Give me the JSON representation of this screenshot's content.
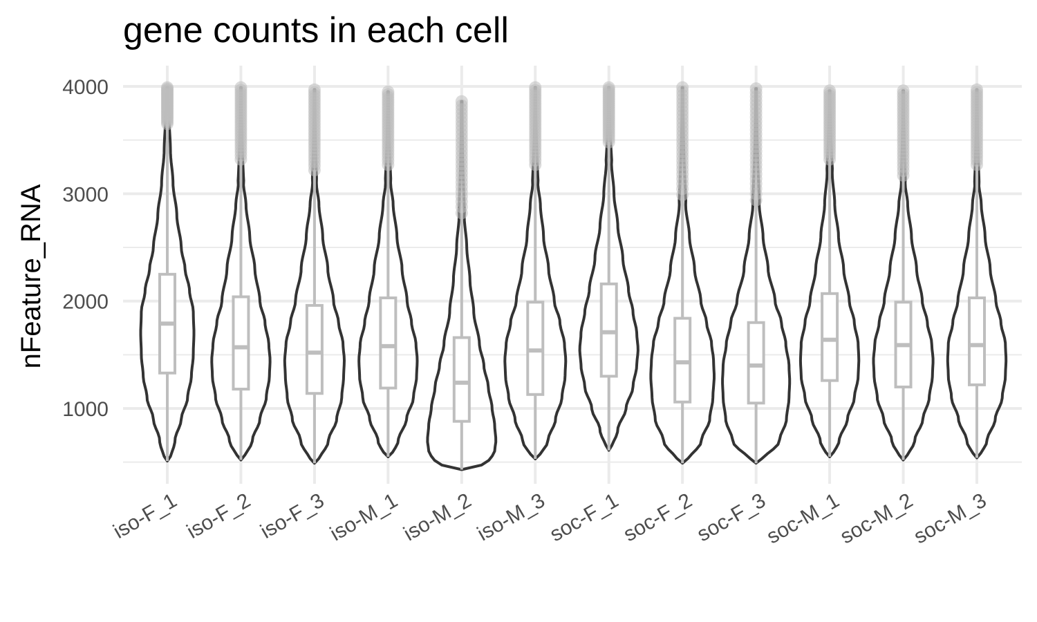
{
  "chart_data": {
    "type": "violin",
    "title": "gene counts in each cell",
    "xlabel": "",
    "ylabel": "nFeature_RNA",
    "ylim": [
      450,
      4000
    ],
    "yticks": [
      1000,
      2000,
      3000,
      4000
    ],
    "ytick_labels": [
      "1000",
      "2000",
      "3000",
      "4000"
    ],
    "grid": true,
    "legend": "none",
    "colors": {
      "violin_outline": "#333333",
      "box": "#bebebe",
      "outlier": "#bebebe",
      "grid": "#ebebeb"
    },
    "categories": [
      "iso-F_1",
      "iso-F_2",
      "iso-F_3",
      "iso-M_1",
      "iso-M_2",
      "iso-M_3",
      "soc-F_1",
      "soc-F_2",
      "soc-F_3",
      "soc-M_1",
      "soc-M_2",
      "soc-M_3"
    ],
    "groups": [
      {
        "name": "iso-F_1",
        "min": 510,
        "q1": 1330,
        "median": 1790,
        "q3": 2250,
        "whisker_high": 3650,
        "outlier_from": 3650,
        "max": 3990,
        "density": [
          [
            510,
            4
          ],
          [
            700,
            12
          ],
          [
            900,
            22
          ],
          [
            1100,
            32
          ],
          [
            1300,
            38
          ],
          [
            1500,
            41
          ],
          [
            1700,
            42
          ],
          [
            1900,
            41
          ],
          [
            2100,
            35
          ],
          [
            2300,
            28
          ],
          [
            2500,
            22
          ],
          [
            2800,
            15
          ],
          [
            3100,
            9
          ],
          [
            3400,
            5
          ],
          [
            3700,
            3
          ]
        ]
      },
      {
        "name": "iso-F_2",
        "min": 520,
        "q1": 1180,
        "median": 1570,
        "q3": 2040,
        "whisker_high": 3320,
        "outlier_from": 3320,
        "max": 3990,
        "density": [
          [
            520,
            4
          ],
          [
            700,
            18
          ],
          [
            900,
            30
          ],
          [
            1100,
            40
          ],
          [
            1300,
            45
          ],
          [
            1450,
            46
          ],
          [
            1600,
            44
          ],
          [
            1800,
            38
          ],
          [
            2000,
            30
          ],
          [
            2300,
            22
          ],
          [
            2600,
            14
          ],
          [
            2900,
            8
          ],
          [
            3100,
            4
          ]
        ]
      },
      {
        "name": "iso-F_3",
        "min": 490,
        "q1": 1140,
        "median": 1520,
        "q3": 1960,
        "whisker_high": 3220,
        "outlier_from": 3220,
        "max": 3970,
        "density": [
          [
            490,
            5
          ],
          [
            700,
            22
          ],
          [
            900,
            35
          ],
          [
            1100,
            43
          ],
          [
            1300,
            46
          ],
          [
            1450,
            47
          ],
          [
            1600,
            45
          ],
          [
            1800,
            38
          ],
          [
            2000,
            30
          ],
          [
            2300,
            21
          ],
          [
            2600,
            13
          ],
          [
            2900,
            7
          ],
          [
            3100,
            3
          ]
        ]
      },
      {
        "name": "iso-M_1",
        "min": 550,
        "q1": 1190,
        "median": 1580,
        "q3": 2030,
        "whisker_high": 3270,
        "outlier_from": 3270,
        "max": 3950,
        "density": [
          [
            550,
            5
          ],
          [
            700,
            16
          ],
          [
            900,
            29
          ],
          [
            1100,
            40
          ],
          [
            1300,
            45
          ],
          [
            1450,
            46
          ],
          [
            1600,
            44
          ],
          [
            1800,
            37
          ],
          [
            2000,
            30
          ],
          [
            2300,
            22
          ],
          [
            2600,
            14
          ],
          [
            2900,
            8
          ],
          [
            3100,
            4
          ]
        ]
      },
      {
        "name": "iso-M_2",
        "min": 430,
        "q1": 880,
        "median": 1240,
        "q3": 1660,
        "whisker_high": 2820,
        "outlier_from": 2820,
        "max": 3860,
        "density": [
          [
            430,
            10
          ],
          [
            500,
            42
          ],
          [
            600,
            52
          ],
          [
            700,
            54
          ],
          [
            850,
            52
          ],
          [
            1000,
            48
          ],
          [
            1200,
            42
          ],
          [
            1400,
            35
          ],
          [
            1600,
            28
          ],
          [
            1900,
            19
          ],
          [
            2200,
            13
          ],
          [
            2500,
            8
          ],
          [
            2800,
            4
          ]
        ]
      },
      {
        "name": "iso-M_3",
        "min": 530,
        "q1": 1130,
        "median": 1540,
        "q3": 1990,
        "whisker_high": 3270,
        "outlier_from": 3270,
        "max": 3990,
        "density": [
          [
            530,
            5
          ],
          [
            700,
            20
          ],
          [
            900,
            32
          ],
          [
            1100,
            42
          ],
          [
            1300,
            47
          ],
          [
            1450,
            48
          ],
          [
            1600,
            46
          ],
          [
            1800,
            39
          ],
          [
            2000,
            30
          ],
          [
            2300,
            21
          ],
          [
            2600,
            13
          ],
          [
            2900,
            8
          ],
          [
            3100,
            4
          ]
        ]
      },
      {
        "name": "soc-F_1",
        "min": 610,
        "q1": 1300,
        "median": 1710,
        "q3": 2160,
        "whisker_high": 3480,
        "outlier_from": 3480,
        "max": 3990,
        "density": [
          [
            610,
            3
          ],
          [
            800,
            14
          ],
          [
            1000,
            27
          ],
          [
            1200,
            38
          ],
          [
            1400,
            44
          ],
          [
            1550,
            46
          ],
          [
            1700,
            44
          ],
          [
            1900,
            38
          ],
          [
            2100,
            31
          ],
          [
            2400,
            22
          ],
          [
            2700,
            14
          ],
          [
            3000,
            8
          ],
          [
            3300,
            4
          ]
        ]
      },
      {
        "name": "soc-F_2",
        "min": 490,
        "q1": 1060,
        "median": 1430,
        "q3": 1840,
        "whisker_high": 2990,
        "outlier_from": 2990,
        "max": 3990,
        "density": [
          [
            490,
            6
          ],
          [
            700,
            30
          ],
          [
            900,
            43
          ],
          [
            1100,
            48
          ],
          [
            1300,
            50
          ],
          [
            1450,
            49
          ],
          [
            1600,
            46
          ],
          [
            1800,
            38
          ],
          [
            2000,
            29
          ],
          [
            2300,
            19
          ],
          [
            2600,
            11
          ],
          [
            2900,
            5
          ]
        ]
      },
      {
        "name": "soc-F_3",
        "min": 490,
        "q1": 1050,
        "median": 1400,
        "q3": 1800,
        "whisker_high": 2940,
        "outlier_from": 2940,
        "max": 3980,
        "density": [
          [
            490,
            6
          ],
          [
            700,
            37
          ],
          [
            900,
            48
          ],
          [
            1100,
            52
          ],
          [
            1250,
            53
          ],
          [
            1400,
            52
          ],
          [
            1600,
            47
          ],
          [
            1800,
            40
          ],
          [
            2000,
            30
          ],
          [
            2300,
            19
          ],
          [
            2600,
            11
          ],
          [
            2900,
            5
          ]
        ]
      },
      {
        "name": "soc-M_1",
        "min": 550,
        "q1": 1260,
        "median": 1640,
        "q3": 2070,
        "whisker_high": 3320,
        "outlier_from": 3320,
        "max": 3960,
        "density": [
          [
            550,
            4
          ],
          [
            700,
            15
          ],
          [
            900,
            28
          ],
          [
            1100,
            39
          ],
          [
            1300,
            45
          ],
          [
            1450,
            46
          ],
          [
            1600,
            45
          ],
          [
            1800,
            39
          ],
          [
            2000,
            31
          ],
          [
            2300,
            22
          ],
          [
            2600,
            14
          ],
          [
            2900,
            8
          ],
          [
            3200,
            4
          ]
        ]
      },
      {
        "name": "soc-M_2",
        "min": 520,
        "q1": 1200,
        "median": 1590,
        "q3": 1990,
        "whisker_high": 3170,
        "outlier_from": 3170,
        "max": 3960,
        "density": [
          [
            520,
            4
          ],
          [
            700,
            18
          ],
          [
            900,
            31
          ],
          [
            1100,
            41
          ],
          [
            1300,
            46
          ],
          [
            1450,
            47
          ],
          [
            1600,
            45
          ],
          [
            1800,
            38
          ],
          [
            2000,
            30
          ],
          [
            2300,
            21
          ],
          [
            2600,
            13
          ],
          [
            2900,
            7
          ],
          [
            3100,
            3
          ]
        ]
      },
      {
        "name": "soc-M_3",
        "min": 540,
        "q1": 1220,
        "median": 1590,
        "q3": 2030,
        "whisker_high": 3270,
        "outlier_from": 3270,
        "max": 3970,
        "density": [
          [
            540,
            4
          ],
          [
            700,
            16
          ],
          [
            900,
            29
          ],
          [
            1100,
            40
          ],
          [
            1300,
            45
          ],
          [
            1450,
            46
          ],
          [
            1600,
            45
          ],
          [
            1800,
            38
          ],
          [
            2000,
            30
          ],
          [
            2300,
            21
          ],
          [
            2600,
            13
          ],
          [
            2900,
            7
          ],
          [
            3100,
            3
          ]
        ]
      }
    ]
  }
}
